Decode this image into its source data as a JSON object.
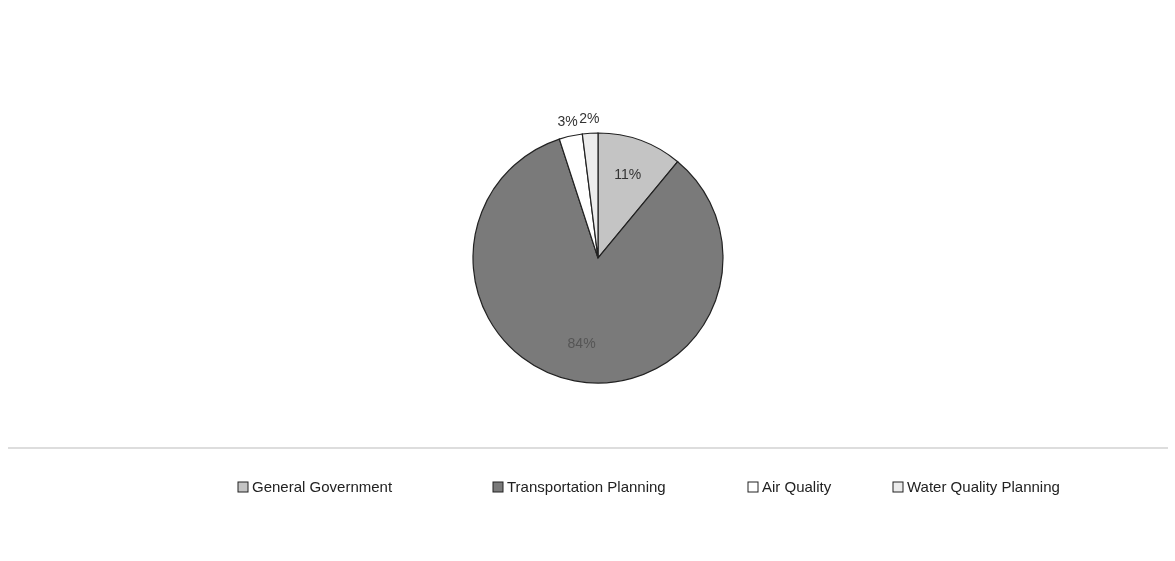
{
  "chart_data": {
    "type": "pie",
    "categories": [
      "General Government",
      "Transportation Planning",
      "Air Quality",
      "Water Quality Planning"
    ],
    "values": [
      11,
      84,
      3,
      2
    ],
    "colors": [
      "#c4c4c4",
      "#7a7a7a",
      "#ffffff",
      "#ececec"
    ],
    "value_labels": [
      "11%",
      "84%",
      "3%",
      "2%"
    ],
    "legend": "bottom"
  }
}
